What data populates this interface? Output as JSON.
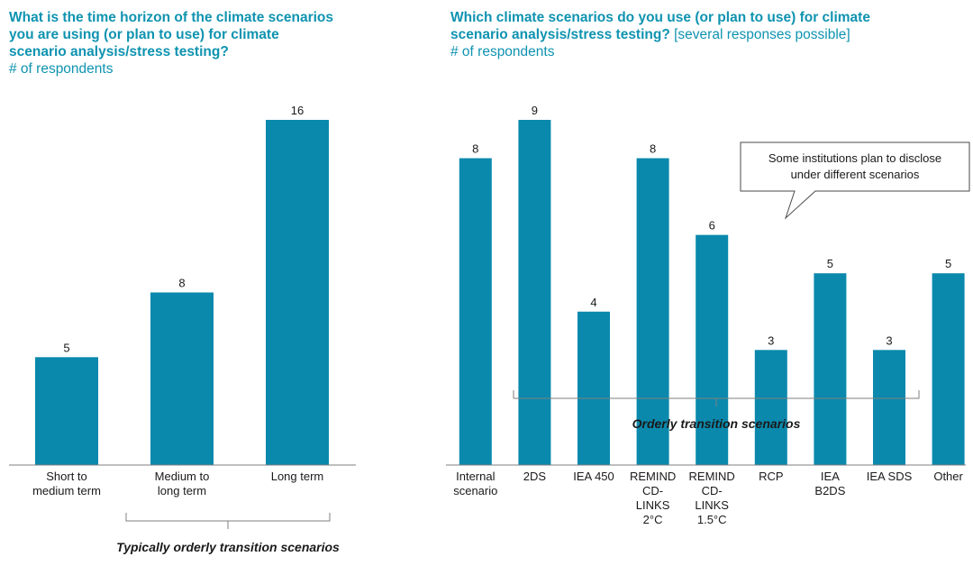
{
  "chart_data": [
    {
      "type": "bar",
      "title": "What is the time horizon of the climate scenarios you are using (or plan to use) for climate scenario analysis/stress testing?",
      "title_lines": [
        "What is the time horizon of the climate scenarios",
        "you are using (or plan to use) for climate",
        "scenario analysis/stress testing?"
      ],
      "subtitle": "# of respondents",
      "categories": [
        "Short to medium term",
        "Medium to long term",
        "Long term"
      ],
      "category_lines": [
        [
          "Short to",
          "medium term"
        ],
        [
          "Medium to",
          "long term"
        ],
        [
          "Long term"
        ]
      ],
      "values": [
        5,
        8,
        16
      ],
      "ylim": [
        0,
        16
      ],
      "bracket_label": "Typically orderly transition scenarios",
      "colors": {
        "bar": "#0a89ad"
      }
    },
    {
      "type": "bar",
      "title": "Which climate scenarios do you use (or plan to use) for climate scenario analysis/stress testing?",
      "title_lines": [
        "Which climate scenarios do you use (or plan to use) for climate",
        "scenario analysis/stress testing?"
      ],
      "title_note": "[several responses possible]",
      "subtitle": "# of respondents",
      "categories": [
        "Internal scenario",
        "2DS",
        "IEA 450",
        "REMIND CD-LINKS 2°C",
        "REMIND CD-LINKS 1.5°C",
        "RCP",
        "IEA B2DS",
        "IEA SDS",
        "Other"
      ],
      "category_lines": [
        [
          "Internal",
          "scenario"
        ],
        [
          "2DS"
        ],
        [
          "IEA 450"
        ],
        [
          "REMIND",
          "CD-",
          "LINKS",
          "2°C"
        ],
        [
          "REMIND",
          "CD-",
          "LINKS",
          "1.5°C"
        ],
        [
          "RCP"
        ],
        [
          "IEA",
          "B2DS"
        ],
        [
          "IEA SDS"
        ],
        [
          "Other"
        ]
      ],
      "values": [
        8,
        9,
        4,
        8,
        6,
        3,
        5,
        3,
        5
      ],
      "ylim": [
        0,
        9
      ],
      "bracket_label": "Orderly transition scenarios",
      "callout_lines": [
        "Some institutions plan to disclose",
        "under different  scenarios"
      ],
      "colors": {
        "bar": "#0a89ad"
      }
    }
  ]
}
